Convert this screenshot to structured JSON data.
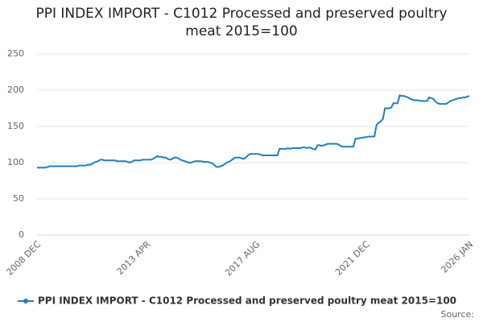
{
  "chart_data": {
    "type": "line",
    "title": "PPI INDEX IMPORT - C1012 Processed and preserved poultry meat 2015=100",
    "source": "Source:",
    "categories": [
      "2008 DEC",
      null,
      null,
      null,
      null,
      null,
      null,
      null,
      null,
      null,
      null,
      null,
      null,
      null,
      null,
      null,
      null,
      null,
      null,
      null,
      null,
      null,
      null,
      null,
      null,
      null,
      null,
      null,
      null,
      null,
      null,
      null,
      null,
      null,
      null,
      null,
      null,
      null,
      null,
      null,
      null,
      null,
      null,
      null,
      null,
      null,
      null,
      null,
      null,
      null,
      null,
      null,
      "2013 APR",
      null,
      null,
      null,
      null,
      null,
      null,
      null,
      null,
      null,
      null,
      null,
      null,
      null,
      null,
      null,
      null,
      null,
      null,
      null,
      null,
      null,
      null,
      null,
      null,
      null,
      null,
      null,
      null,
      null,
      null,
      null,
      null,
      null,
      null,
      null,
      null,
      null,
      null,
      null,
      null,
      null,
      null,
      null,
      null,
      null,
      null,
      null,
      null,
      null,
      null,
      null,
      "2017 AUG",
      null,
      null,
      null,
      null,
      null,
      null,
      null,
      null,
      null,
      null,
      null,
      null,
      null,
      null,
      null,
      null,
      null,
      null,
      null,
      null,
      null,
      null,
      null,
      null,
      null,
      null,
      null,
      null,
      null,
      null,
      null,
      null,
      null,
      null,
      null,
      null,
      null,
      null,
      null,
      null,
      null,
      null,
      null,
      null,
      null,
      null,
      null,
      null,
      null,
      null,
      null,
      "2021 DEC",
      null,
      null,
      null,
      null,
      null,
      null,
      null,
      null,
      null,
      null,
      null,
      null,
      null,
      null,
      null,
      null,
      null,
      null,
      null,
      null,
      null,
      null,
      null,
      null,
      null,
      null,
      null,
      null,
      null,
      null,
      null,
      null,
      null,
      null,
      null,
      null,
      null,
      null,
      null,
      null,
      null,
      null,
      null,
      null,
      null,
      null,
      null,
      null,
      "2026 JAN"
    ],
    "series": [
      {
        "name": "PPI INDEX IMPORT - C1012 Processed and preserved poultry meat 2015=100",
        "color": "#1f7fc4",
        "values": [
          93,
          93,
          93,
          93,
          93,
          94,
          95,
          95,
          95,
          95,
          95,
          95,
          95,
          95,
          95,
          95,
          95,
          95,
          95,
          95,
          96,
          96,
          96,
          96,
          97,
          97,
          98,
          100,
          101,
          102,
          104,
          104,
          103,
          103,
          103,
          103,
          103,
          103,
          102,
          102,
          102,
          102,
          102,
          101,
          100,
          101,
          103,
          103,
          103,
          103,
          104,
          104,
          104,
          104,
          104,
          105,
          107,
          109,
          108,
          108,
          107,
          107,
          105,
          104,
          105,
          107,
          107,
          106,
          104,
          103,
          102,
          101,
          100,
          100,
          101,
          102,
          102,
          102,
          102,
          101,
          101,
          101,
          100,
          99,
          97,
          94,
          94,
          95,
          96,
          98,
          100,
          101,
          103,
          105,
          107,
          107,
          107,
          106,
          105,
          107,
          110,
          112,
          112,
          112,
          112,
          112,
          111,
          110,
          110,
          110,
          110,
          110,
          110,
          110,
          110,
          119,
          119,
          119,
          119,
          120,
          119,
          120,
          120,
          120,
          120,
          120,
          121,
          121,
          120,
          121,
          120,
          119,
          118,
          124,
          124,
          123,
          124,
          125,
          126,
          126,
          126,
          126,
          126,
          125,
          123,
          122,
          122,
          122,
          122,
          122,
          122,
          133,
          133,
          134,
          134,
          135,
          135,
          136,
          136,
          136,
          136,
          152,
          155,
          157,
          160,
          175,
          175,
          175,
          176,
          182,
          182,
          182,
          193,
          192,
          192,
          191,
          190,
          188,
          187,
          186,
          186,
          186,
          185,
          185,
          185,
          185,
          190,
          189,
          188,
          184,
          182,
          181,
          181,
          181,
          181,
          183,
          185,
          186,
          187,
          188,
          189,
          189,
          190,
          190,
          191,
          192
        ]
      }
    ],
    "ylim": [
      0,
      250
    ],
    "yticks": [
      0,
      50,
      100,
      150,
      200,
      250
    ],
    "grid": true
  }
}
